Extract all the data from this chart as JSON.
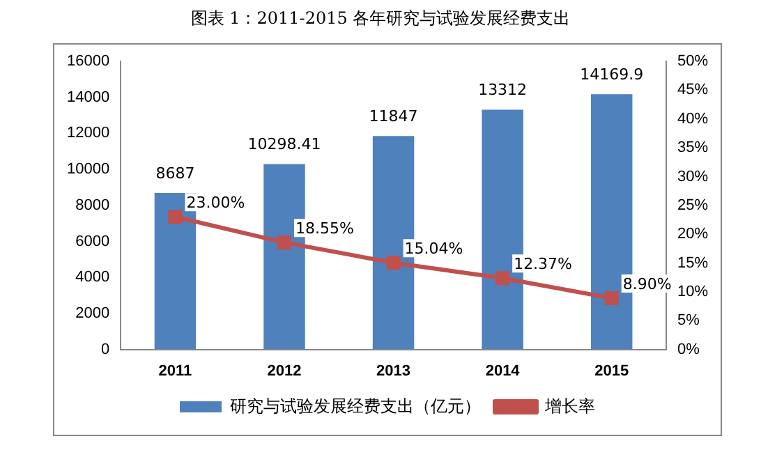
{
  "chart_data": {
    "type": "bar",
    "title": "图表 1：2011-2015 各年研究与试验发展经费支出",
    "categories": [
      "2011",
      "2012",
      "2013",
      "2014",
      "2015"
    ],
    "series": [
      {
        "name": "研究与试验发展经费支出（亿元）",
        "color": "#4f81bd",
        "values": [
          8687,
          10298.41,
          11847,
          13312,
          14169.9
        ],
        "value_labels": [
          "8687",
          "10298.41",
          "11847",
          "13312",
          "14169.9"
        ]
      },
      {
        "name": "增长率",
        "type": "line",
        "axis": "y2",
        "color": "#c0504d",
        "values": [
          23.0,
          18.55,
          15.04,
          12.37,
          8.9
        ],
        "value_labels": [
          "23.00%",
          "18.55%",
          "15.04%",
          "12.37%",
          "8.90%"
        ]
      }
    ],
    "ylim": [
      0,
      16000
    ],
    "yticks": [
      0,
      2000,
      4000,
      6000,
      8000,
      10000,
      12000,
      14000,
      16000
    ],
    "y2lim": [
      0,
      50
    ],
    "y2ticks": [
      {
        "value": 0,
        "label": "0%"
      },
      {
        "value": 5,
        "label": "5%"
      },
      {
        "value": 10,
        "label": "10%"
      },
      {
        "value": 15,
        "label": "15%"
      },
      {
        "value": 20,
        "label": "20%"
      },
      {
        "value": 25,
        "label": "25%"
      },
      {
        "value": 30,
        "label": "30%"
      },
      {
        "value": 35,
        "label": "35%"
      },
      {
        "value": 40,
        "label": "40%"
      },
      {
        "value": 45,
        "label": "45%"
      },
      {
        "value": 50,
        "label": "50%"
      }
    ],
    "grid": false,
    "legend": "bottom",
    "marker": "square",
    "line_style": "solid"
  }
}
